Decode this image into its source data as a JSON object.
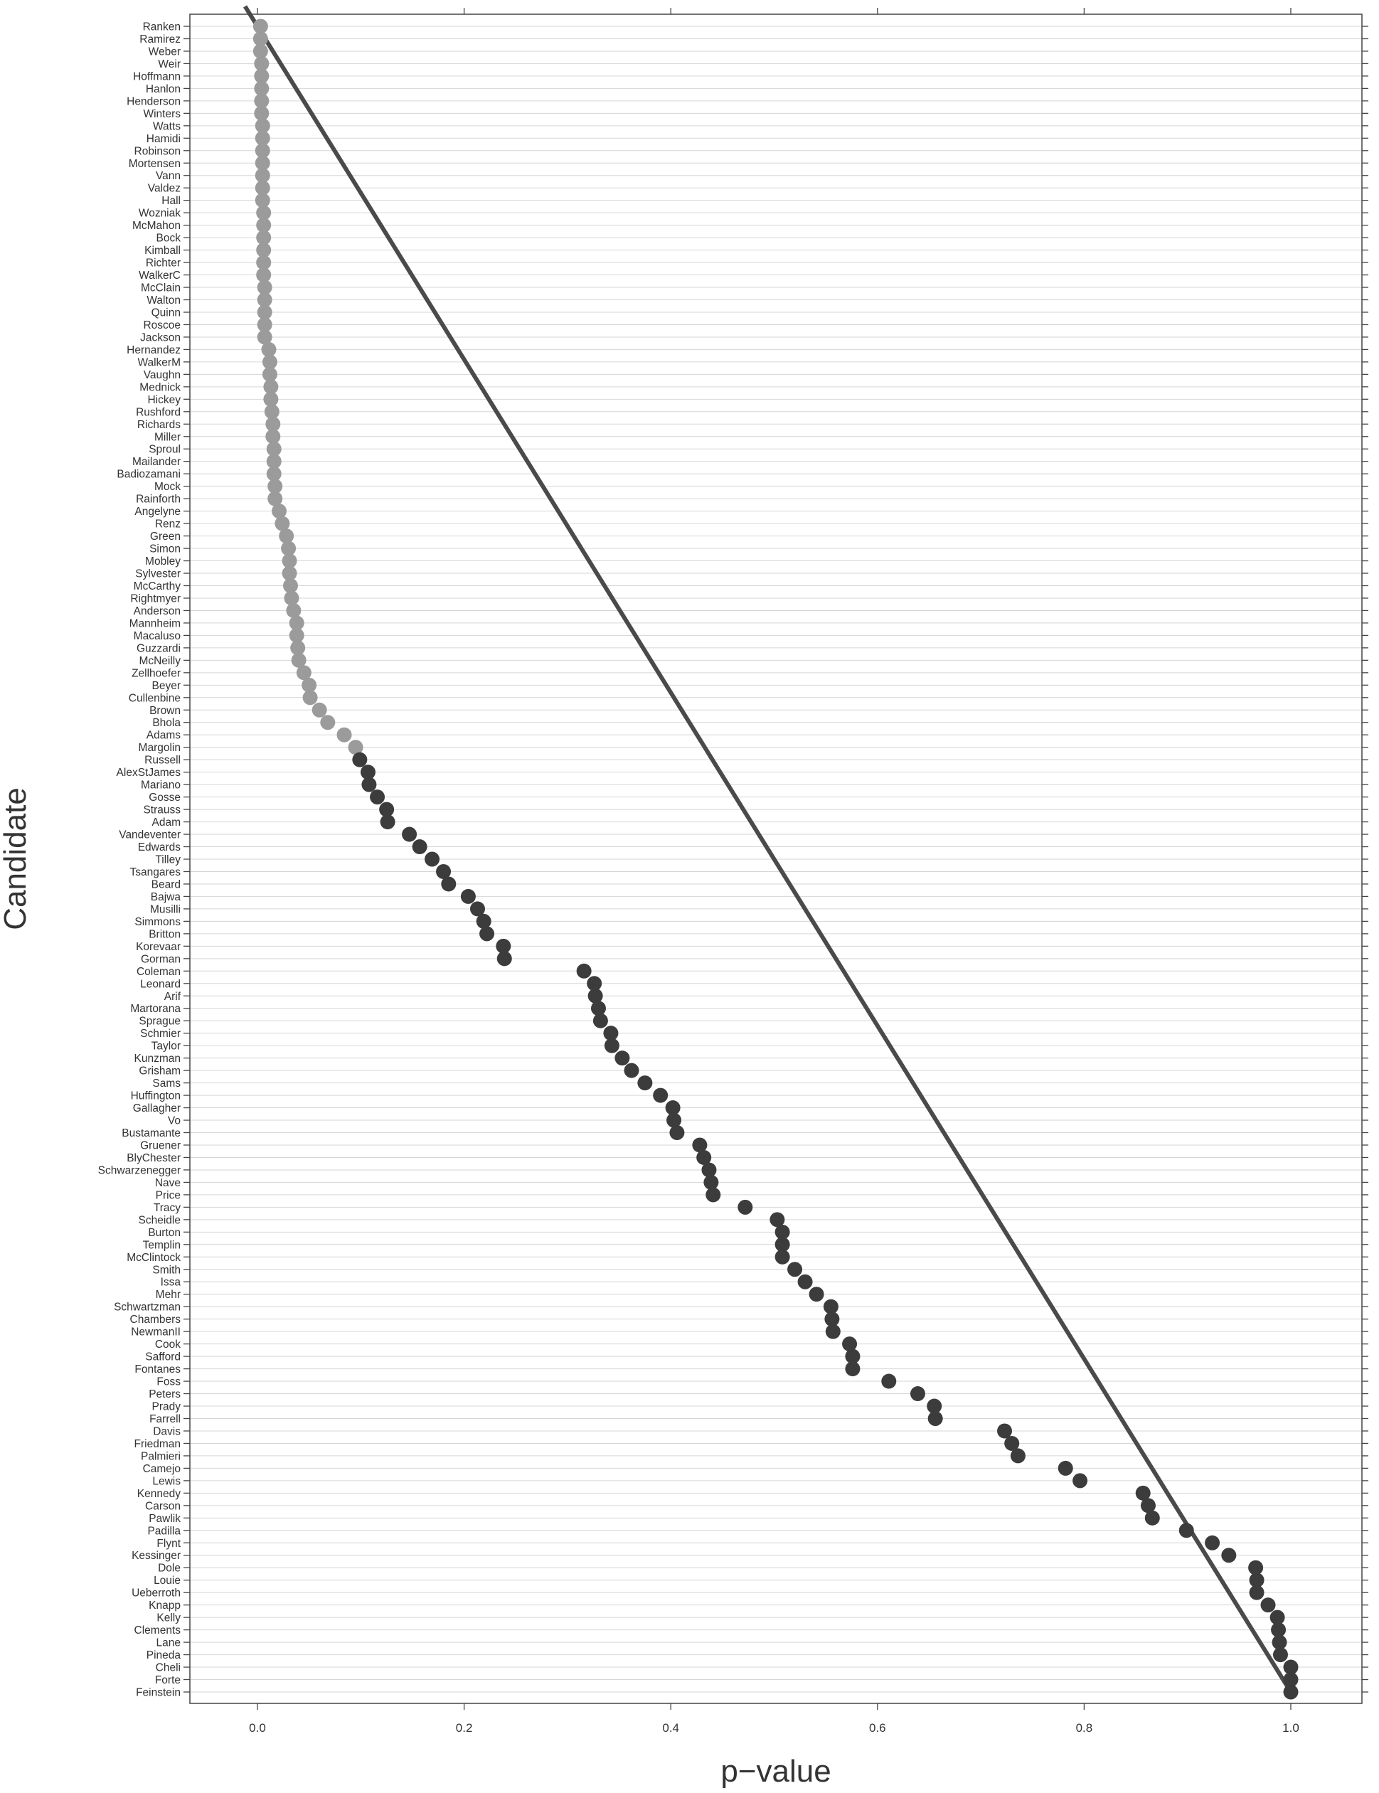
{
  "chart_data": {
    "type": "scatter",
    "xlabel": "p−value",
    "ylabel": "Candidate",
    "xlim": [
      -0.07,
      1.065
    ],
    "x_ticks": [
      0.0,
      0.2,
      0.4,
      0.6,
      0.8,
      1.0
    ],
    "x_tick_labels": [
      "0.0",
      "0.2",
      "0.4",
      "0.6",
      "0.8",
      "1.0"
    ],
    "grid": true,
    "legend": "none",
    "reference_line": {
      "from": [
        0,
        1
      ],
      "to": [
        1,
        0
      ],
      "description": "uniform expectation diagonal"
    },
    "colors": {
      "light_points": "#9b9b9b",
      "dark_points": "#3c3c3c",
      "reference_line": "#4a4a4a"
    },
    "light_point_count": 59,
    "categories": [
      "Ranken",
      "Ramirez",
      "Weber",
      "Weir",
      "Hoffmann",
      "Hanlon",
      "Henderson",
      "Winters",
      "Watts",
      "Hamidi",
      "Robinson",
      "Mortensen",
      "Vann",
      "Valdez",
      "Hall",
      "Wozniak",
      "McMahon",
      "Bock",
      "Kimball",
      "Richter",
      "WalkerC",
      "McClain",
      "Walton",
      "Quinn",
      "Roscoe",
      "Jackson",
      "Hernandez",
      "WalkerM",
      "Vaughn",
      "Mednick",
      "Hickey",
      "Rushford",
      "Richards",
      "Miller",
      "Sproul",
      "Mailander",
      "Badiozamani",
      "Mock",
      "Rainforth",
      "Angelyne",
      "Renz",
      "Green",
      "Simon",
      "Mobley",
      "Sylvester",
      "McCarthy",
      "Rightmyer",
      "Anderson",
      "Mannheim",
      "Macaluso",
      "Guzzardi",
      "McNeilly",
      "Zellhoefer",
      "Beyer",
      "Cullenbine",
      "Brown",
      "Bhola",
      "Adams",
      "Margolin",
      "Russell",
      "AlexStJames",
      "Mariano",
      "Gosse",
      "Strauss",
      "Adam",
      "Vandeventer",
      "Edwards",
      "Tilley",
      "Tsangares",
      "Beard",
      "Bajwa",
      "Musilli",
      "Simmons",
      "Britton",
      "Korevaar",
      "Gorman",
      "Coleman",
      "Leonard",
      "Arif",
      "Martorana",
      "Sprague",
      "Schmier",
      "Taylor",
      "Kunzman",
      "Grisham",
      "Sams",
      "Huffington",
      "Gallagher",
      "Vo",
      "Bustamante",
      "Gruener",
      "BlyChester",
      "Schwarzenegger",
      "Nave",
      "Price",
      "Tracy",
      "Scheidle",
      "Burton",
      "Templin",
      "McClintock",
      "Smith",
      "Issa",
      "Mehr",
      "Schwartzman",
      "Chambers",
      "NewmanII",
      "Cook",
      "Safford",
      "Fontanes",
      "Foss",
      "Peters",
      "Prady",
      "Farrell",
      "Davis",
      "Friedman",
      "Palmieri",
      "Camejo",
      "Lewis",
      "Kennedy",
      "Carson",
      "Pawlik",
      "Padilla",
      "Flynt",
      "Kessinger",
      "Dole",
      "Louie",
      "Ueberroth",
      "Knapp",
      "Kelly",
      "Clements",
      "Lane",
      "Pineda",
      "Cheli",
      "Forte",
      "Feinstein"
    ],
    "values": [
      0.003,
      0.003,
      0.003,
      0.004,
      0.004,
      0.004,
      0.004,
      0.004,
      0.005,
      0.005,
      0.005,
      0.005,
      0.005,
      0.005,
      0.005,
      0.006,
      0.006,
      0.006,
      0.006,
      0.006,
      0.006,
      0.007,
      0.007,
      0.007,
      0.007,
      0.007,
      0.011,
      0.012,
      0.012,
      0.013,
      0.013,
      0.014,
      0.015,
      0.015,
      0.016,
      0.016,
      0.016,
      0.017,
      0.017,
      0.021,
      0.024,
      0.028,
      0.03,
      0.031,
      0.031,
      0.032,
      0.033,
      0.035,
      0.038,
      0.038,
      0.039,
      0.04,
      0.045,
      0.05,
      0.051,
      0.06,
      0.068,
      0.084,
      0.095,
      0.099,
      0.107,
      0.108,
      0.116,
      0.125,
      0.126,
      0.147,
      0.157,
      0.169,
      0.18,
      0.185,
      0.204,
      0.213,
      0.219,
      0.222,
      0.238,
      0.239,
      0.316,
      0.326,
      0.327,
      0.33,
      0.332,
      0.342,
      0.343,
      0.353,
      0.362,
      0.375,
      0.39,
      0.402,
      0.403,
      0.406,
      0.428,
      0.432,
      0.437,
      0.439,
      0.441,
      0.472,
      0.503,
      0.508,
      0.508,
      0.508,
      0.52,
      0.53,
      0.541,
      0.555,
      0.556,
      0.557,
      0.573,
      0.576,
      0.576,
      0.611,
      0.639,
      0.655,
      0.656,
      0.723,
      0.73,
      0.736,
      0.782,
      0.796,
      0.857,
      0.862,
      0.866,
      0.899,
      0.924,
      0.94,
      0.966,
      0.967,
      0.967,
      0.978,
      0.987,
      0.988,
      0.989,
      0.99,
      1.0,
      1.0,
      1.0
    ]
  }
}
